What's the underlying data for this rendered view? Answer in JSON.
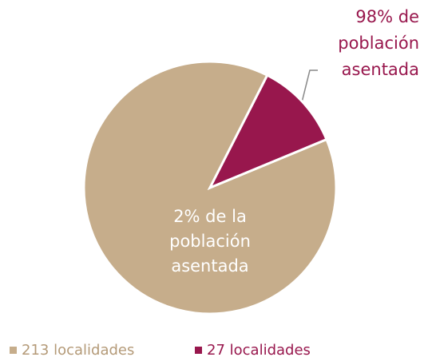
{
  "chart_data": {
    "type": "pie",
    "categories": [
      "213 localidades",
      "27 localidades"
    ],
    "values": [
      213,
      27
    ],
    "value_labels": [
      "213 localidades",
      "27 localidades"
    ],
    "colors": [
      "#c6ad8b",
      "#98174d"
    ],
    "annotations": [
      {
        "lines": [
          "98% de",
          "población",
          "asentada"
        ],
        "color": "#98174d"
      },
      {
        "lines": [
          "2% de la",
          "población",
          "asentada"
        ],
        "color": "#ffffff"
      }
    ]
  }
}
